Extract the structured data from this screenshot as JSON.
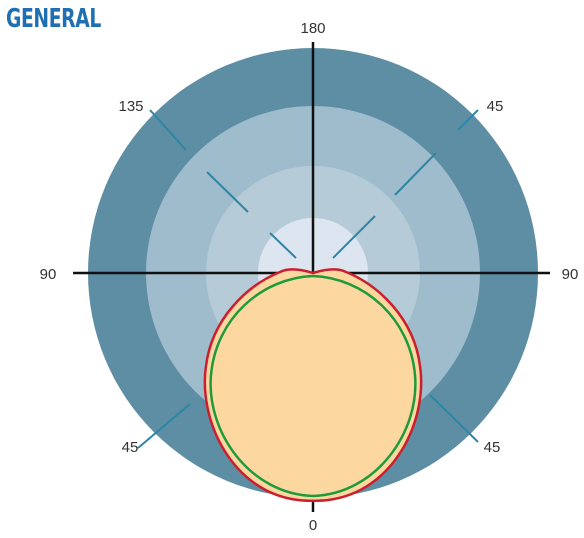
{
  "heading": "GENERAL",
  "labels": {
    "top": "180",
    "bottom": "0",
    "left": "90",
    "right": "90",
    "upper_left": "135",
    "upper_right": "45",
    "lower_left": "45",
    "lower_right": "45"
  },
  "colors": {
    "outer_ring": "#5e8ea3",
    "ring_2": "#9fbccd",
    "ring_3": "#b5cbd8",
    "center": "#dde6f0",
    "spoke": "#2d86a5",
    "axis": "#111111",
    "pattern_fill": "#fcd8a0",
    "outer_pattern_stroke": "#cc1f2e",
    "inner_pattern_stroke": "#1f9a3a"
  }
}
